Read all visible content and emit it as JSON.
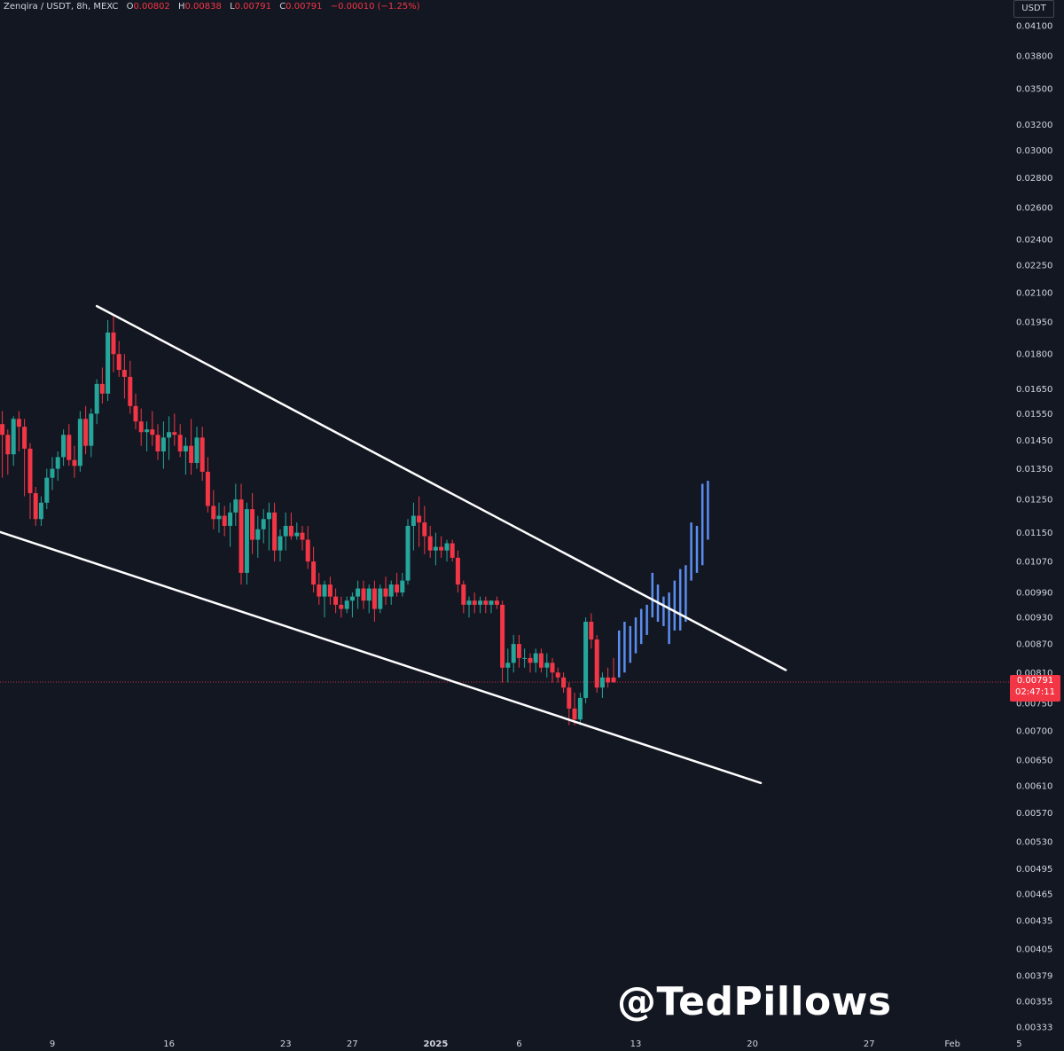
{
  "header": {
    "symbol": "Zenqira / USDT, 8h, MEXC",
    "o_label": "O",
    "o_value": "0.00802",
    "h_label": "H",
    "h_value": "0.00838",
    "l_label": "L",
    "l_value": "0.00791",
    "c_label": "C",
    "c_value": "0.00791",
    "change": "−0.00010 (−1.25%)"
  },
  "unit_label": "USDT",
  "last_price": {
    "value": "0.00791",
    "countdown": "02:47:11",
    "color": "#f23645"
  },
  "watermark": "@TedPillows",
  "colors": {
    "up": "#26a69a",
    "down": "#f23645",
    "projection": "#5b8def",
    "background": "#131722",
    "trendline": "#ffffff"
  },
  "chart_data": {
    "type": "candlestick",
    "title": "Zenqira / USDT, 8h, MEXC",
    "y_scale": "log",
    "y_ticks": [
      "0.04100",
      "0.03800",
      "0.03500",
      "0.03200",
      "0.03000",
      "0.02800",
      "0.02600",
      "0.02400",
      "0.02250",
      "0.02100",
      "0.01950",
      "0.01800",
      "0.01650",
      "0.01550",
      "0.01450",
      "0.01350",
      "0.01250",
      "0.01150",
      "0.01070",
      "0.00990",
      "0.00930",
      "0.00870",
      "0.00810",
      "0.00750",
      "0.00700",
      "0.00650",
      "0.00610",
      "0.00570",
      "0.00530",
      "0.00495",
      "0.00465",
      "0.00435",
      "0.00405",
      "0.00379",
      "0.00355",
      "0.00333"
    ],
    "x_ticks": [
      "9",
      "16",
      "23",
      "27",
      "2025",
      "6",
      "13",
      "20",
      "27",
      "Feb",
      "5"
    ],
    "x_range_days": [
      -4.3,
      28.75
    ],
    "ylim": [
      0.00325,
      0.0415
    ],
    "candles": [
      {
        "t": -4.33,
        "o": 0.0137,
        "h": 0.0149,
        "l": 0.0133,
        "c": 0.0145
      },
      {
        "t": -4.0,
        "o": 0.0145,
        "h": 0.0152,
        "l": 0.0136,
        "c": 0.014
      },
      {
        "t": -3.67,
        "o": 0.014,
        "h": 0.0174,
        "l": 0.0136,
        "c": 0.0169
      },
      {
        "t": -3.33,
        "o": 0.0169,
        "h": 0.0175,
        "l": 0.0146,
        "c": 0.0151
      },
      {
        "t": -3.0,
        "o": 0.0151,
        "h": 0.0156,
        "l": 0.0132,
        "c": 0.0147
      },
      {
        "t": -2.67,
        "o": 0.0147,
        "h": 0.0149,
        "l": 0.0133,
        "c": 0.014
      },
      {
        "t": -2.33,
        "o": 0.014,
        "h": 0.0154,
        "l": 0.0136,
        "c": 0.0153
      },
      {
        "t": -2.0,
        "o": 0.0153,
        "h": 0.0156,
        "l": 0.0141,
        "c": 0.015
      },
      {
        "t": -1.67,
        "o": 0.015,
        "h": 0.0153,
        "l": 0.0126,
        "c": 0.0142
      },
      {
        "t": -1.33,
        "o": 0.0142,
        "h": 0.0144,
        "l": 0.0119,
        "c": 0.0127
      },
      {
        "t": -1.0,
        "o": 0.0127,
        "h": 0.0129,
        "l": 0.0117,
        "c": 0.0119
      },
      {
        "t": -0.67,
        "o": 0.0119,
        "h": 0.0126,
        "l": 0.0117,
        "c": 0.0124
      },
      {
        "t": -0.33,
        "o": 0.0124,
        "h": 0.0135,
        "l": 0.0122,
        "c": 0.0132
      },
      {
        "t": 0.0,
        "o": 0.0132,
        "h": 0.0139,
        "l": 0.0128,
        "c": 0.0135
      },
      {
        "t": 0.33,
        "o": 0.0135,
        "h": 0.0141,
        "l": 0.0131,
        "c": 0.0139
      },
      {
        "t": 0.67,
        "o": 0.0139,
        "h": 0.0149,
        "l": 0.0136,
        "c": 0.0147
      },
      {
        "t": 1.0,
        "o": 0.0147,
        "h": 0.0151,
        "l": 0.0136,
        "c": 0.0138
      },
      {
        "t": 1.33,
        "o": 0.0138,
        "h": 0.0143,
        "l": 0.0132,
        "c": 0.0136
      },
      {
        "t": 1.67,
        "o": 0.0136,
        "h": 0.0156,
        "l": 0.0134,
        "c": 0.0153
      },
      {
        "t": 2.0,
        "o": 0.0153,
        "h": 0.0158,
        "l": 0.014,
        "c": 0.0143
      },
      {
        "t": 2.33,
        "o": 0.0143,
        "h": 0.0157,
        "l": 0.0139,
        "c": 0.0155
      },
      {
        "t": 2.67,
        "o": 0.0155,
        "h": 0.0169,
        "l": 0.0151,
        "c": 0.0167
      },
      {
        "t": 3.0,
        "o": 0.0167,
        "h": 0.0174,
        "l": 0.0159,
        "c": 0.0163
      },
      {
        "t": 3.33,
        "o": 0.0163,
        "h": 0.0196,
        "l": 0.016,
        "c": 0.019
      },
      {
        "t": 3.67,
        "o": 0.019,
        "h": 0.0198,
        "l": 0.0172,
        "c": 0.018
      },
      {
        "t": 4.0,
        "o": 0.018,
        "h": 0.0186,
        "l": 0.017,
        "c": 0.0173
      },
      {
        "t": 4.33,
        "o": 0.0173,
        "h": 0.018,
        "l": 0.0161,
        "c": 0.017
      },
      {
        "t": 4.67,
        "o": 0.017,
        "h": 0.0177,
        "l": 0.0155,
        "c": 0.0158
      },
      {
        "t": 5.0,
        "o": 0.0158,
        "h": 0.0163,
        "l": 0.0149,
        "c": 0.0152
      },
      {
        "t": 5.33,
        "o": 0.0152,
        "h": 0.0157,
        "l": 0.0143,
        "c": 0.0148
      },
      {
        "t": 5.67,
        "o": 0.0148,
        "h": 0.0152,
        "l": 0.0141,
        "c": 0.0149
      },
      {
        "t": 6.0,
        "o": 0.0149,
        "h": 0.0156,
        "l": 0.0143,
        "c": 0.0147
      },
      {
        "t": 6.33,
        "o": 0.0147,
        "h": 0.0151,
        "l": 0.0138,
        "c": 0.0141
      },
      {
        "t": 6.67,
        "o": 0.0141,
        "h": 0.0152,
        "l": 0.0135,
        "c": 0.0146
      },
      {
        "t": 7.0,
        "o": 0.0146,
        "h": 0.0154,
        "l": 0.0138,
        "c": 0.0148
      },
      {
        "t": 7.33,
        "o": 0.0148,
        "h": 0.0155,
        "l": 0.0143,
        "c": 0.0147
      },
      {
        "t": 7.67,
        "o": 0.0147,
        "h": 0.0151,
        "l": 0.0139,
        "c": 0.0141
      },
      {
        "t": 8.0,
        "o": 0.0141,
        "h": 0.0146,
        "l": 0.0133,
        "c": 0.0143
      },
      {
        "t": 8.33,
        "o": 0.0143,
        "h": 0.0153,
        "l": 0.0133,
        "c": 0.0137
      },
      {
        "t": 8.67,
        "o": 0.0137,
        "h": 0.015,
        "l": 0.0135,
        "c": 0.0146
      },
      {
        "t": 9.0,
        "o": 0.0146,
        "h": 0.015,
        "l": 0.0131,
        "c": 0.0134
      },
      {
        "t": 9.33,
        "o": 0.0134,
        "h": 0.0139,
        "l": 0.0121,
        "c": 0.0123
      },
      {
        "t": 9.67,
        "o": 0.0123,
        "h": 0.0128,
        "l": 0.0116,
        "c": 0.0119
      },
      {
        "t": 10.0,
        "o": 0.0119,
        "h": 0.0124,
        "l": 0.0115,
        "c": 0.012
      },
      {
        "t": 10.33,
        "o": 0.012,
        "h": 0.0123,
        "l": 0.0114,
        "c": 0.0117
      },
      {
        "t": 10.67,
        "o": 0.0117,
        "h": 0.0124,
        "l": 0.0111,
        "c": 0.0121
      },
      {
        "t": 11.0,
        "o": 0.0121,
        "h": 0.013,
        "l": 0.0117,
        "c": 0.0125
      },
      {
        "t": 11.33,
        "o": 0.0125,
        "h": 0.013,
        "l": 0.0101,
        "c": 0.0104
      },
      {
        "t": 11.67,
        "o": 0.0104,
        "h": 0.0124,
        "l": 0.0101,
        "c": 0.0122
      },
      {
        "t": 12.0,
        "o": 0.0122,
        "h": 0.0127,
        "l": 0.0109,
        "c": 0.0113
      },
      {
        "t": 12.33,
        "o": 0.0113,
        "h": 0.012,
        "l": 0.0108,
        "c": 0.0116
      },
      {
        "t": 12.67,
        "o": 0.0116,
        "h": 0.0122,
        "l": 0.0112,
        "c": 0.0119
      },
      {
        "t": 13.0,
        "o": 0.0119,
        "h": 0.0124,
        "l": 0.011,
        "c": 0.0121
      },
      {
        "t": 13.33,
        "o": 0.0121,
        "h": 0.0124,
        "l": 0.0107,
        "c": 0.011
      },
      {
        "t": 13.67,
        "o": 0.011,
        "h": 0.0116,
        "l": 0.0107,
        "c": 0.0114
      },
      {
        "t": 14.0,
        "o": 0.0114,
        "h": 0.0121,
        "l": 0.011,
        "c": 0.0117
      },
      {
        "t": 14.33,
        "o": 0.0117,
        "h": 0.0121,
        "l": 0.0113,
        "c": 0.0114
      },
      {
        "t": 14.67,
        "o": 0.0114,
        "h": 0.0118,
        "l": 0.0113,
        "c": 0.0115
      },
      {
        "t": 15.0,
        "o": 0.0115,
        "h": 0.0117,
        "l": 0.011,
        "c": 0.0113
      },
      {
        "t": 15.33,
        "o": 0.0113,
        "h": 0.0117,
        "l": 0.0105,
        "c": 0.0107
      },
      {
        "t": 15.67,
        "o": 0.0107,
        "h": 0.0111,
        "l": 0.0099,
        "c": 0.0101
      },
      {
        "t": 16.0,
        "o": 0.0101,
        "h": 0.0104,
        "l": 0.0096,
        "c": 0.0098
      },
      {
        "t": 16.33,
        "o": 0.0098,
        "h": 0.0102,
        "l": 0.0093,
        "c": 0.0101
      },
      {
        "t": 16.67,
        "o": 0.0101,
        "h": 0.0103,
        "l": 0.0096,
        "c": 0.0098
      },
      {
        "t": 17.0,
        "o": 0.0098,
        "h": 0.01,
        "l": 0.0094,
        "c": 0.0096
      },
      {
        "t": 17.33,
        "o": 0.0096,
        "h": 0.0098,
        "l": 0.0093,
        "c": 0.0095
      },
      {
        "t": 17.67,
        "o": 0.0095,
        "h": 0.0098,
        "l": 0.0094,
        "c": 0.0097
      },
      {
        "t": 18.0,
        "o": 0.0097,
        "h": 0.0099,
        "l": 0.0093,
        "c": 0.0098
      },
      {
        "t": 18.33,
        "o": 0.0098,
        "h": 0.0102,
        "l": 0.0095,
        "c": 0.01
      },
      {
        "t": 18.67,
        "o": 0.01,
        "h": 0.0102,
        "l": 0.0095,
        "c": 0.0097
      },
      {
        "t": 19.0,
        "o": 0.0097,
        "h": 0.0101,
        "l": 0.0094,
        "c": 0.01
      },
      {
        "t": 19.33,
        "o": 0.01,
        "h": 0.0102,
        "l": 0.0092,
        "c": 0.0095
      },
      {
        "t": 19.67,
        "o": 0.0095,
        "h": 0.0101,
        "l": 0.0094,
        "c": 0.01
      },
      {
        "t": 20.0,
        "o": 0.01,
        "h": 0.0103,
        "l": 0.0096,
        "c": 0.0098
      },
      {
        "t": 20.33,
        "o": 0.0098,
        "h": 0.0102,
        "l": 0.0096,
        "c": 0.0101
      },
      {
        "t": 20.67,
        "o": 0.0101,
        "h": 0.0104,
        "l": 0.0098,
        "c": 0.0099
      },
      {
        "t": 21.0,
        "o": 0.0099,
        "h": 0.0104,
        "l": 0.0098,
        "c": 0.0102
      },
      {
        "t": 21.33,
        "o": 0.0102,
        "h": 0.0119,
        "l": 0.0101,
        "c": 0.0117
      },
      {
        "t": 21.67,
        "o": 0.0117,
        "h": 0.0124,
        "l": 0.011,
        "c": 0.012
      },
      {
        "t": 22.0,
        "o": 0.012,
        "h": 0.0126,
        "l": 0.0111,
        "c": 0.0118
      },
      {
        "t": 22.33,
        "o": 0.0118,
        "h": 0.0123,
        "l": 0.0109,
        "c": 0.0114
      },
      {
        "t": 22.67,
        "o": 0.0114,
        "h": 0.0117,
        "l": 0.0108,
        "c": 0.011
      },
      {
        "t": 23.0,
        "o": 0.011,
        "h": 0.0115,
        "l": 0.0106,
        "c": 0.0111
      },
      {
        "t": 23.33,
        "o": 0.0111,
        "h": 0.0114,
        "l": 0.0108,
        "c": 0.011
      },
      {
        "t": 23.67,
        "o": 0.011,
        "h": 0.0113,
        "l": 0.0107,
        "c": 0.0112
      },
      {
        "t": 24.0,
        "o": 0.0112,
        "h": 0.0113,
        "l": 0.0107,
        "c": 0.0108
      },
      {
        "t": 24.33,
        "o": 0.0108,
        "h": 0.011,
        "l": 0.0099,
        "c": 0.0101
      },
      {
        "t": 24.67,
        "o": 0.0101,
        "h": 0.0102,
        "l": 0.0094,
        "c": 0.0096
      },
      {
        "t": 25.0,
        "o": 0.0096,
        "h": 0.0098,
        "l": 0.0093,
        "c": 0.0097
      },
      {
        "t": 25.33,
        "o": 0.0097,
        "h": 0.0099,
        "l": 0.0094,
        "c": 0.0096
      },
      {
        "t": 25.67,
        "o": 0.0096,
        "h": 0.0098,
        "l": 0.0094,
        "c": 0.0097
      },
      {
        "t": 26.0,
        "o": 0.0097,
        "h": 0.0098,
        "l": 0.0094,
        "c": 0.0096
      },
      {
        "t": 26.33,
        "o": 0.0096,
        "h": 0.0097,
        "l": 0.0094,
        "c": 0.0097
      },
      {
        "t": 26.67,
        "o": 0.0097,
        "h": 0.0098,
        "l": 0.0095,
        "c": 0.0096
      },
      {
        "t": 27.0,
        "o": 0.0096,
        "h": 0.0097,
        "l": 0.0079,
        "c": 0.0082
      },
      {
        "t": 27.33,
        "o": 0.0082,
        "h": 0.0086,
        "l": 0.0079,
        "c": 0.0083
      },
      {
        "t": 27.67,
        "o": 0.0083,
        "h": 0.0089,
        "l": 0.0081,
        "c": 0.0087
      },
      {
        "t": 28.0,
        "o": 0.0087,
        "h": 0.0089,
        "l": 0.0082,
        "c": 0.0084
      },
      {
        "t": 28.33,
        "o": 0.0084,
        "h": 0.0086,
        "l": 0.0082,
        "c": 0.0084
      },
      {
        "t": 28.67,
        "o": 0.0084,
        "h": 0.0085,
        "l": 0.0081,
        "c": 0.0083
      },
      {
        "t": 29.0,
        "o": 0.0083,
        "h": 0.0086,
        "l": 0.0081,
        "c": 0.0085
      },
      {
        "t": 29.33,
        "o": 0.0085,
        "h": 0.0086,
        "l": 0.0081,
        "c": 0.0082
      },
      {
        "t": 29.67,
        "o": 0.0082,
        "h": 0.0085,
        "l": 0.008,
        "c": 0.0083
      },
      {
        "t": 30.0,
        "o": 0.0083,
        "h": 0.0084,
        "l": 0.0079,
        "c": 0.0081
      },
      {
        "t": 30.33,
        "o": 0.0081,
        "h": 0.0082,
        "l": 0.0079,
        "c": 0.008
      },
      {
        "t": 30.67,
        "o": 0.008,
        "h": 0.0081,
        "l": 0.0077,
        "c": 0.0078
      },
      {
        "t": 31.0,
        "o": 0.0078,
        "h": 0.0079,
        "l": 0.0071,
        "c": 0.0074
      },
      {
        "t": 31.33,
        "o": 0.0074,
        "h": 0.0077,
        "l": 0.0071,
        "c": 0.0072
      },
      {
        "t": 31.67,
        "o": 0.0072,
        "h": 0.0077,
        "l": 0.0071,
        "c": 0.0076
      },
      {
        "t": 32.0,
        "o": 0.0076,
        "h": 0.0093,
        "l": 0.0075,
        "c": 0.0092
      },
      {
        "t": 32.33,
        "o": 0.0092,
        "h": 0.0094,
        "l": 0.0086,
        "c": 0.0088
      },
      {
        "t": 32.67,
        "o": 0.0088,
        "h": 0.0089,
        "l": 0.0077,
        "c": 0.0078
      },
      {
        "t": 33.0,
        "o": 0.0078,
        "h": 0.0081,
        "l": 0.0076,
        "c": 0.008
      },
      {
        "t": 33.33,
        "o": 0.008,
        "h": 0.0082,
        "l": 0.0078,
        "c": 0.0079
      },
      {
        "t": 33.67,
        "o": 0.008,
        "h": 0.0084,
        "l": 0.0079,
        "c": 0.0079
      }
    ],
    "projection_bars": [
      {
        "t": 34.0,
        "lo": 0.008,
        "hi": 0.009
      },
      {
        "t": 34.33,
        "lo": 0.0081,
        "hi": 0.0092
      },
      {
        "t": 34.67,
        "lo": 0.0083,
        "hi": 0.0091
      },
      {
        "t": 35.0,
        "lo": 0.0085,
        "hi": 0.0093
      },
      {
        "t": 35.33,
        "lo": 0.0087,
        "hi": 0.0095
      },
      {
        "t": 35.67,
        "lo": 0.0089,
        "hi": 0.0096
      },
      {
        "t": 36.0,
        "lo": 0.0093,
        "hi": 0.0104
      },
      {
        "t": 36.33,
        "lo": 0.0092,
        "hi": 0.0101
      },
      {
        "t": 36.67,
        "lo": 0.0091,
        "hi": 0.0098
      },
      {
        "t": 37.0,
        "lo": 0.0087,
        "hi": 0.0099
      },
      {
        "t": 37.33,
        "lo": 0.009,
        "hi": 0.0102
      },
      {
        "t": 37.67,
        "lo": 0.009,
        "hi": 0.0105
      },
      {
        "t": 38.0,
        "lo": 0.0092,
        "hi": 0.0106
      },
      {
        "t": 38.33,
        "lo": 0.0102,
        "hi": 0.0118
      },
      {
        "t": 38.67,
        "lo": 0.0104,
        "hi": 0.0117
      },
      {
        "t": 39.0,
        "lo": 0.0106,
        "hi": 0.013
      },
      {
        "t": 39.33,
        "lo": 0.0113,
        "hi": 0.0131
      }
    ],
    "trendlines": [
      {
        "name": "upper",
        "from": {
          "t": 2.67,
          "price": 0.0203
        },
        "to": {
          "t": 44.0,
          "price": 0.00815
        }
      },
      {
        "name": "lower",
        "from": {
          "t": -4.0,
          "price": 0.01166
        },
        "to": {
          "t": 42.5,
          "price": 0.00614
        }
      }
    ],
    "last_price_line": 0.00791
  }
}
